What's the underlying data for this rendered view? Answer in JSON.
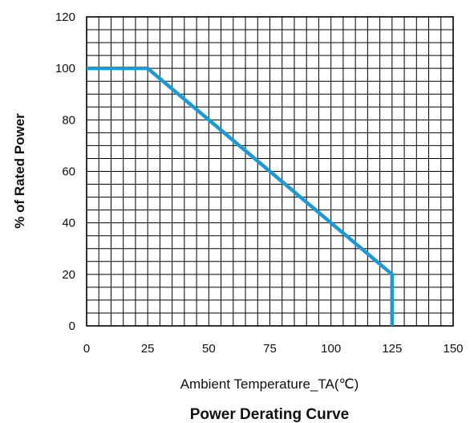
{
  "chart_data": {
    "type": "line",
    "title": "Power Derating Curve",
    "xlabel": "Ambient Temperature_TA(℃)",
    "ylabel": "% of Rated Power",
    "xlim": [
      0,
      150
    ],
    "ylim": [
      0,
      120
    ],
    "x_ticks": [
      "0",
      "25",
      "50",
      "75",
      "100",
      "125",
      "150"
    ],
    "y_ticks": [
      "0",
      "20",
      "40",
      "60",
      "80",
      "100",
      "120"
    ],
    "grid": true,
    "grid_minor_x_step": 5,
    "grid_minor_y_step": 5,
    "series": [
      {
        "x": [
          0,
          25,
          125,
          125
        ],
        "y": [
          100,
          100,
          20,
          0
        ],
        "color": "#1a9ad6"
      }
    ]
  }
}
